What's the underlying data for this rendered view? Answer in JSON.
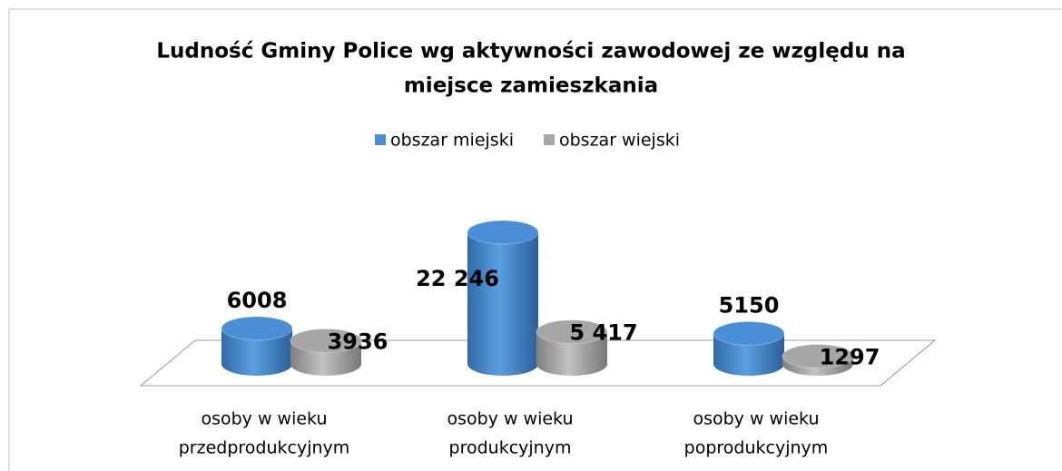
{
  "chart_data": {
    "type": "bar3d-cylinder",
    "title": [
      "Ludność Gminy Police wg aktywności zawodowej ze względu na",
      "miejsce zamieszkania"
    ],
    "categories": [
      [
        "osoby w wieku",
        "przedprodukcyjnym"
      ],
      [
        "osoby w wieku",
        "produkcyjnym"
      ],
      [
        "osoby w wieku",
        "poprodukcyjnym"
      ]
    ],
    "series": [
      {
        "name": "obszar miejski",
        "color": "#4a8fd6",
        "values": [
          6008,
          22246,
          5150
        ],
        "value_labels": [
          "6008",
          "22 246",
          "5150"
        ]
      },
      {
        "name": "obszar wiejski",
        "color": "#a6a6a6",
        "values": [
          3936,
          5417,
          1297
        ],
        "value_labels": [
          "3936",
          "5 417",
          "1297"
        ]
      }
    ],
    "legend": "top"
  }
}
